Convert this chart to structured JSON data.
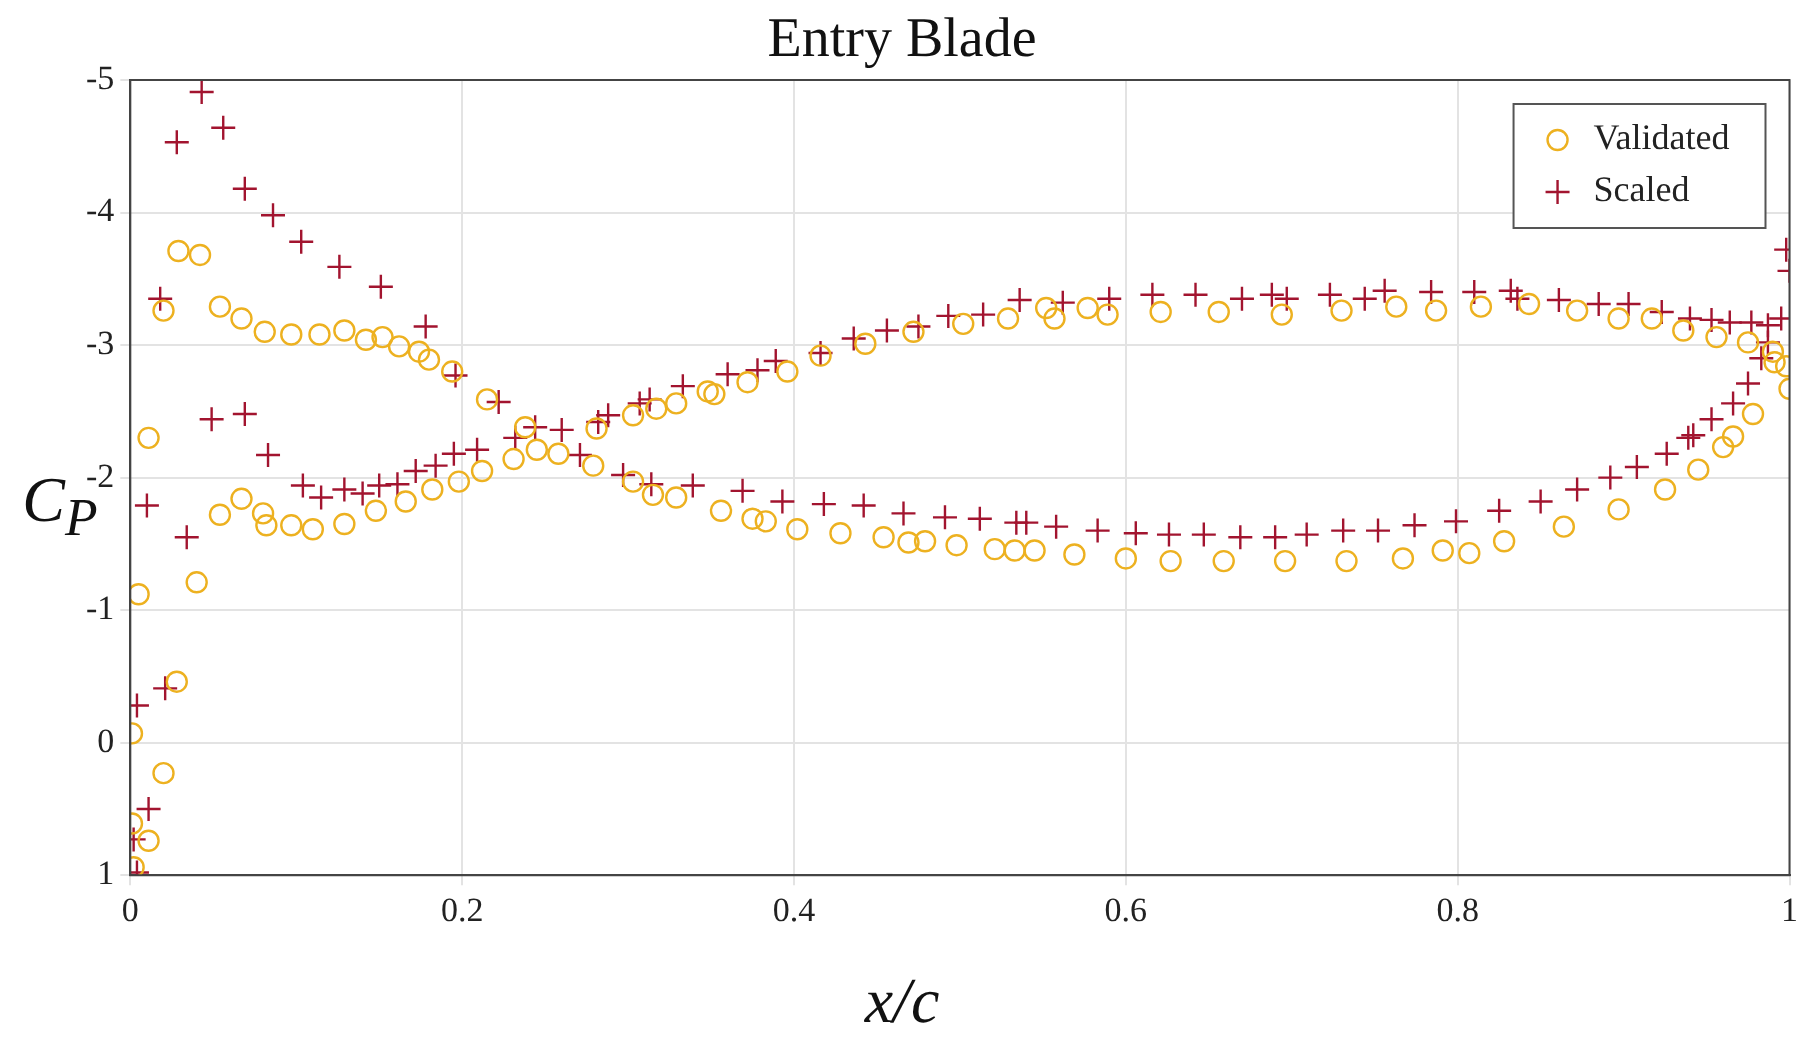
{
  "chart_data": {
    "type": "scatter",
    "title": "Entry Blade",
    "xlabel": "x/c",
    "ylabel": "C$_{P}$",
    "xlim": [
      0,
      1
    ],
    "xticks": [
      0,
      0.2,
      0.4,
      0.6,
      0.8,
      1
    ],
    "ylim": [
      1,
      -5
    ],
    "yticks": [
      -5,
      -4,
      -3,
      -2,
      -1,
      0,
      1
    ],
    "grid": true,
    "legend": "top right",
    "series": [
      {
        "name": "Validated",
        "color": "#edb120",
        "marker": "circle",
        "x": [
          0.029,
          0.042,
          0.02,
          0.054,
          0.067,
          0.081,
          0.097,
          0.114,
          0.129,
          0.142,
          0.152,
          0.162,
          0.174,
          0.18,
          0.194,
          0.215,
          0.238,
          0.245,
          0.258,
          0.011,
          0.054,
          0.067,
          0.08,
          0.082,
          0.097,
          0.11,
          0.129,
          0.148,
          0.166,
          0.182,
          0.198,
          0.212,
          0.231,
          0.005,
          0.04,
          0.028,
          0.001,
          0.02,
          0.001,
          0.011,
          0.002,
          0.281,
          0.303,
          0.317,
          0.329,
          0.348,
          0.352,
          0.372,
          0.396,
          0.416,
          0.443,
          0.472,
          0.502,
          0.529,
          0.552,
          0.557,
          0.577,
          0.589,
          0.621,
          0.279,
          0.303,
          0.315,
          0.329,
          0.356,
          0.375,
          0.383,
          0.402,
          0.428,
          0.454,
          0.469,
          0.479,
          0.498,
          0.521,
          0.533,
          0.545,
          0.569,
          0.6,
          0.627,
          0.656,
          0.694,
          0.73,
          0.763,
          0.787,
          0.814,
          0.843,
          0.872,
          0.897,
          0.917,
          0.936,
          0.956,
          0.975,
          0.99,
          0.998,
          1.0,
          0.659,
          0.696,
          0.733,
          0.767,
          0.791,
          0.807,
          0.828,
          0.864,
          0.897,
          0.925,
          0.945,
          0.96,
          0.966,
          0.978,
          0.991
        ],
        "values": [
          -3.71,
          -3.68,
          -3.26,
          -3.29,
          -3.2,
          -3.1,
          -3.08,
          -3.08,
          -3.11,
          -3.04,
          -3.06,
          -2.99,
          -2.95,
          -2.89,
          -2.8,
          -2.59,
          -2.38,
          -2.21,
          -2.18,
          -2.3,
          -1.72,
          -1.84,
          -1.73,
          -1.64,
          -1.64,
          -1.61,
          -1.65,
          -1.75,
          -1.82,
          -1.91,
          -1.97,
          -2.05,
          -2.14,
          -1.12,
          -1.21,
          -0.46,
          -0.07,
          0.23,
          0.61,
          0.74,
          0.94,
          -2.37,
          -2.47,
          -2.52,
          -2.56,
          -2.65,
          -2.63,
          -2.72,
          -2.8,
          -2.92,
          -3.01,
          -3.1,
          -3.16,
          -3.2,
          -3.28,
          -3.2,
          -3.28,
          -3.23,
          -3.25,
          -2.09,
          -1.97,
          -1.87,
          -1.85,
          -1.75,
          -1.69,
          -1.67,
          -1.61,
          -1.58,
          -1.55,
          -1.51,
          -1.52,
          -1.49,
          -1.46,
          -1.45,
          -1.45,
          -1.42,
          -1.39,
          -1.37,
          -3.25,
          -3.23,
          -3.26,
          -3.29,
          -3.26,
          -3.29,
          -3.31,
          -3.26,
          -3.2,
          -3.2,
          -3.11,
          -3.06,
          -3.02,
          -2.95,
          -2.84,
          -2.67,
          -1.37,
          -1.37,
          -1.37,
          -1.39,
          -1.45,
          -1.43,
          -1.52,
          -1.63,
          -1.76,
          -1.91,
          -2.06,
          -2.23,
          -2.31,
          -2.48,
          -2.87
        ]
      },
      {
        "name": "Scaled",
        "color": "#a2142f",
        "marker": "cross",
        "x": [
          0.043,
          0.028,
          0.056,
          0.069,
          0.086,
          0.103,
          0.126,
          0.151,
          0.178,
          0.196,
          0.222,
          0.018,
          0.049,
          0.069,
          0.083,
          0.104,
          0.115,
          0.129,
          0.14,
          0.15,
          0.161,
          0.172,
          0.184,
          0.195,
          0.209,
          0.232,
          0.244,
          0.26,
          0.01,
          0.034,
          0.021,
          0.004,
          0.011,
          0.002,
          0.004,
          0.282,
          0.288,
          0.307,
          0.313,
          0.333,
          0.36,
          0.378,
          0.389,
          0.416,
          0.436,
          0.456,
          0.475,
          0.493,
          0.514,
          0.536,
          0.562,
          0.59,
          0.616,
          0.271,
          0.297,
          0.314,
          0.339,
          0.369,
          0.393,
          0.418,
          0.442,
          0.466,
          0.491,
          0.512,
          0.534,
          0.54,
          0.558,
          0.583,
          0.606,
          0.626,
          0.642,
          0.67,
          0.688,
          0.697,
          0.723,
          0.744,
          0.756,
          0.784,
          0.81,
          0.832,
          0.836,
          0.861,
          0.885,
          0.903,
          0.923,
          0.94,
          0.953,
          0.964,
          0.977,
          0.987,
          0.995,
          1.0,
          0.998,
          0.647,
          0.669,
          0.69,
          0.709,
          0.731,
          0.752,
          0.774,
          0.799,
          0.825,
          0.85,
          0.872,
          0.892,
          0.908,
          0.926,
          0.939,
          0.942,
          0.953,
          0.966,
          0.975,
          0.983,
          0.987
        ],
        "values": [
          -4.91,
          -4.53,
          -4.64,
          -4.18,
          -3.98,
          -3.78,
          -3.59,
          -3.44,
          -3.14,
          -2.77,
          -2.57,
          -3.35,
          -2.44,
          -2.48,
          -2.17,
          -1.94,
          -1.85,
          -1.91,
          -1.88,
          -1.94,
          -1.95,
          -2.05,
          -2.09,
          -2.18,
          -2.21,
          -2.3,
          -2.38,
          -2.36,
          -1.79,
          -1.55,
          -0.41,
          -0.28,
          0.5,
          0.73,
          0.98,
          -2.42,
          -2.47,
          -2.56,
          -2.59,
          -2.69,
          -2.78,
          -2.81,
          -2.88,
          -2.94,
          -3.05,
          -3.11,
          -3.14,
          -3.22,
          -3.23,
          -3.34,
          -3.32,
          -3.35,
          -3.38,
          -2.17,
          -2.02,
          -1.95,
          -1.94,
          -1.9,
          -1.82,
          -1.8,
          -1.79,
          -1.73,
          -1.7,
          -1.69,
          -1.66,
          -1.66,
          -1.63,
          -1.6,
          -1.58,
          -1.57,
          -3.38,
          -3.35,
          -3.38,
          -3.35,
          -3.38,
          -3.35,
          -3.41,
          -3.4,
          -3.4,
          -3.41,
          -3.35,
          -3.34,
          -3.31,
          -3.31,
          -3.25,
          -3.2,
          -3.19,
          -3.17,
          -3.17,
          -3.15,
          -3.2,
          -3.56,
          -3.72,
          -1.57,
          -1.55,
          -1.55,
          -1.57,
          -1.6,
          -1.6,
          -1.64,
          -1.67,
          -1.75,
          -1.82,
          -1.91,
          -2.0,
          -2.08,
          -2.18,
          -2.3,
          -2.32,
          -2.44,
          -2.56,
          -2.71,
          -2.9,
          -3.02
        ]
      }
    ]
  }
}
